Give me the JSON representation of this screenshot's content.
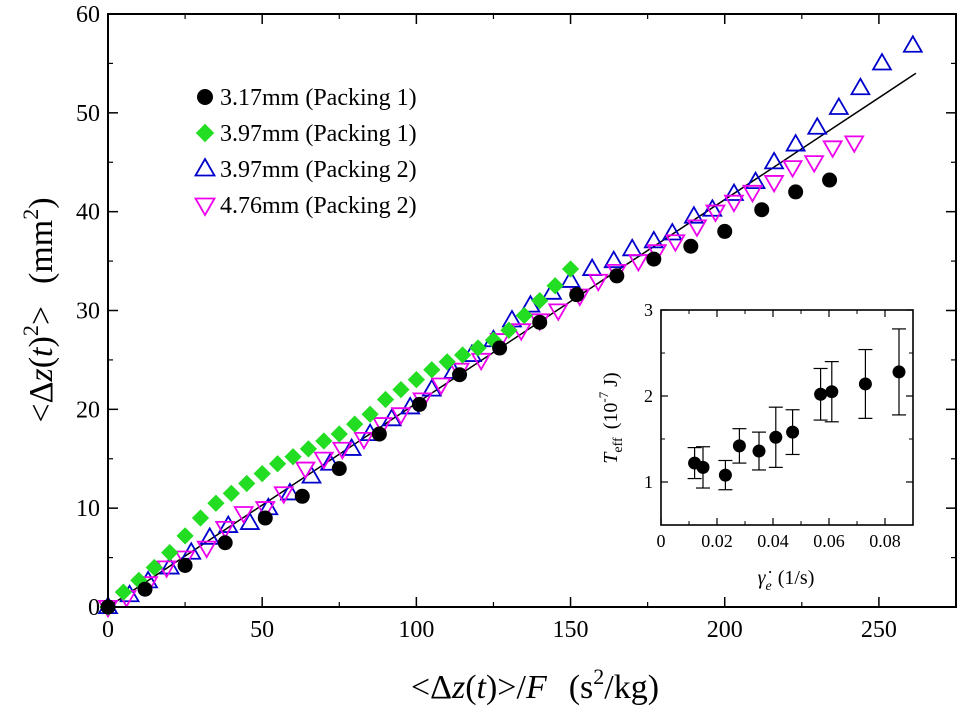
{
  "chart_data": [
    {
      "type": "scatter",
      "title": "",
      "xlabel": "<Δz(t)>/F   (s²/kg)",
      "ylabel": "<Δz(t)²>  (mm²)",
      "xlim": [
        0,
        275
      ],
      "ylim": [
        0,
        60
      ],
      "xticks": [
        0,
        50,
        100,
        150,
        200,
        250
      ],
      "yticks": [
        0,
        10,
        20,
        30,
        40,
        50,
        60
      ],
      "grid": false,
      "legend_position": "top-left",
      "series": [
        {
          "name": "3.17mm (Packing 1)",
          "marker": "filled-circle",
          "color": "#000000",
          "x": [
            0,
            12,
            25,
            38,
            51,
            63,
            75,
            88,
            101,
            114,
            127,
            140,
            152,
            165,
            177,
            189,
            200,
            212,
            223,
            234
          ],
          "y": [
            0,
            1.8,
            4.2,
            6.5,
            9.0,
            11.2,
            14.0,
            17.5,
            20.5,
            23.5,
            26.2,
            28.8,
            31.6,
            33.5,
            35.2,
            36.5,
            38.0,
            40.2,
            42.0,
            43.2
          ]
        },
        {
          "name": "3.97mm (Packing 1)",
          "marker": "filled-diamond",
          "color": "#22dd22",
          "x": [
            0,
            5,
            10,
            15,
            20,
            25,
            30,
            35,
            40,
            45,
            50,
            55,
            60,
            65,
            70,
            75,
            80,
            85,
            90,
            95,
            100,
            105,
            110,
            115,
            120,
            125,
            130,
            135,
            140,
            145,
            150
          ],
          "y": [
            0,
            1.5,
            2.7,
            4.0,
            5.5,
            7.2,
            9.0,
            10.5,
            11.5,
            12.5,
            13.5,
            14.5,
            15.2,
            16.0,
            16.8,
            17.5,
            18.5,
            19.5,
            21.0,
            22.0,
            23.0,
            24.0,
            24.8,
            25.5,
            26.2,
            27.0,
            28.0,
            29.5,
            31.0,
            32.5,
            34.2
          ]
        },
        {
          "name": "3.97mm (Packing 2)",
          "marker": "open-triangle-up",
          "color": "#0000cc",
          "x": [
            0,
            7,
            13,
            20,
            27,
            33,
            39,
            46,
            52,
            59,
            66,
            72,
            79,
            85,
            92,
            98,
            105,
            112,
            118,
            125,
            131,
            137,
            144,
            150,
            157,
            164,
            170,
            177,
            183,
            190,
            196,
            203,
            210,
            216,
            223,
            230,
            237,
            244,
            251,
            261
          ],
          "y": [
            0,
            1.2,
            2.6,
            4.0,
            5.5,
            7.0,
            8.2,
            8.5,
            10.0,
            11.5,
            13.2,
            14.5,
            16.0,
            17.5,
            19.0,
            20.2,
            22.0,
            23.8,
            25.5,
            27.0,
            29.0,
            30.5,
            31.8,
            33.0,
            34.2,
            35.0,
            36.2,
            37.0,
            37.8,
            39.5,
            40.2,
            41.8,
            43.0,
            45.0,
            46.8,
            48.5,
            50.5,
            52.5,
            55.0,
            56.8
          ]
        },
        {
          "name": "4.76mm (Packing 2)",
          "marker": "open-triangle-down",
          "color": "#ee00ee",
          "x": [
            0,
            6,
            13,
            19,
            25,
            32,
            38,
            44,
            51,
            57,
            64,
            70,
            76,
            83,
            89,
            95,
            102,
            108,
            114,
            121,
            127,
            134,
            140,
            146,
            153,
            159,
            165,
            172,
            178,
            184,
            191,
            197,
            203,
            209,
            216,
            222,
            229,
            235,
            242
          ],
          "y": [
            0,
            1.0,
            2.4,
            4.0,
            5.0,
            6.0,
            8.0,
            9.5,
            10.0,
            11.5,
            14.0,
            15.0,
            16.0,
            17.0,
            18.5,
            19.5,
            21.0,
            22.5,
            24.0,
            25.0,
            27.0,
            28.0,
            29.0,
            30.0,
            31.5,
            33.0,
            34.0,
            35.0,
            36.0,
            37.0,
            38.5,
            40.0,
            41.0,
            42.0,
            43.0,
            44.5,
            45.0,
            46.5,
            47.0
          ]
        }
      ],
      "fit_line": {
        "x": [
          0,
          262
        ],
        "y": [
          0,
          54
        ]
      }
    },
    {
      "type": "scatter",
      "title": "",
      "xlabel": "γ̇ e (1/s)",
      "ylabel": "T eff (10⁻⁷ J)",
      "xlim": [
        0,
        0.09
      ],
      "ylim": [
        0.5,
        3
      ],
      "xticks": [
        0,
        0.02,
        0.04,
        0.06,
        0.08
      ],
      "xtick_labels": [
        "0",
        "0.02",
        "0.04",
        "0.06",
        "0.08"
      ],
      "yticks": [
        1,
        2,
        3
      ],
      "grid": false,
      "series": [
        {
          "marker": "filled-circle",
          "color": "#000000",
          "x": [
            0.012,
            0.015,
            0.023,
            0.028,
            0.035,
            0.041,
            0.047,
            0.057,
            0.061,
            0.073,
            0.085
          ],
          "y": [
            1.22,
            1.17,
            1.08,
            1.42,
            1.36,
            1.52,
            1.58,
            2.02,
            2.05,
            2.14,
            2.28
          ],
          "err": [
            0.18,
            0.24,
            0.17,
            0.2,
            0.22,
            0.35,
            0.26,
            0.3,
            0.35,
            0.4,
            0.5
          ]
        }
      ]
    }
  ]
}
